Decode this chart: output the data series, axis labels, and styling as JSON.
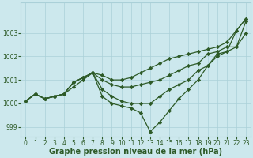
{
  "xlabel": "Graphe pression niveau de la mer (hPa)",
  "background_color": "#cce8ed",
  "grid_color": "#aad0d8",
  "line_color": "#2d5a27",
  "x": [
    0,
    1,
    2,
    3,
    4,
    5,
    6,
    7,
    8,
    9,
    10,
    11,
    12,
    13,
    14,
    15,
    16,
    17,
    18,
    19,
    20,
    21,
    22,
    23
  ],
  "lines": [
    [
      1000.1,
      1000.4,
      1000.2,
      1000.3,
      1000.4,
      1000.9,
      1001.1,
      1001.3,
      1001.2,
      1001.0,
      1001.0,
      1001.1,
      1001.3,
      1001.5,
      1001.7,
      1001.9,
      1002.0,
      1002.1,
      1002.2,
      1002.3,
      1002.4,
      1002.6,
      1003.1,
      1003.6
    ],
    [
      1000.1,
      1000.4,
      1000.2,
      1000.3,
      1000.4,
      1000.9,
      1001.1,
      1001.3,
      1001.0,
      1000.8,
      1000.7,
      1000.7,
      1000.8,
      1000.9,
      1001.0,
      1001.2,
      1001.4,
      1001.6,
      1001.7,
      1002.1,
      1002.2,
      1002.4,
      1002.4,
      1003.5
    ],
    [
      1000.1,
      1000.4,
      1000.2,
      1000.3,
      1000.4,
      1000.9,
      1001.1,
      1001.3,
      1000.6,
      1000.3,
      1000.1,
      1000.0,
      1000.0,
      1000.0,
      1000.3,
      1000.6,
      1000.8,
      1001.0,
      1001.4,
      1001.6,
      1002.0,
      1002.2,
      1002.4,
      1003.0
    ],
    [
      1000.1,
      1000.4,
      1000.2,
      1000.3,
      1000.4,
      1000.7,
      1001.0,
      1001.3,
      1000.3,
      1000.0,
      999.9,
      999.8,
      999.6,
      998.8,
      999.2,
      999.7,
      1000.2,
      1000.6,
      1001.0,
      1001.6,
      1002.1,
      1002.2,
      1003.1,
      1003.6
    ]
  ],
  "ylim": [
    998.6,
    1004.3
  ],
  "yticks": [
    999,
    1000,
    1001,
    1002,
    1003
  ],
  "xticks": [
    0,
    1,
    2,
    3,
    4,
    5,
    6,
    7,
    8,
    9,
    10,
    11,
    12,
    13,
    14,
    15,
    16,
    17,
    18,
    19,
    20,
    21,
    22,
    23
  ],
  "marker": "D",
  "markersize": 2.2,
  "linewidth": 0.9,
  "xlabel_fontsize": 7,
  "tick_fontsize": 5.5,
  "xlabel_color": "#2d5a27",
  "tick_color": "#2d5a27",
  "figsize": [
    3.2,
    2.0
  ],
  "dpi": 100
}
